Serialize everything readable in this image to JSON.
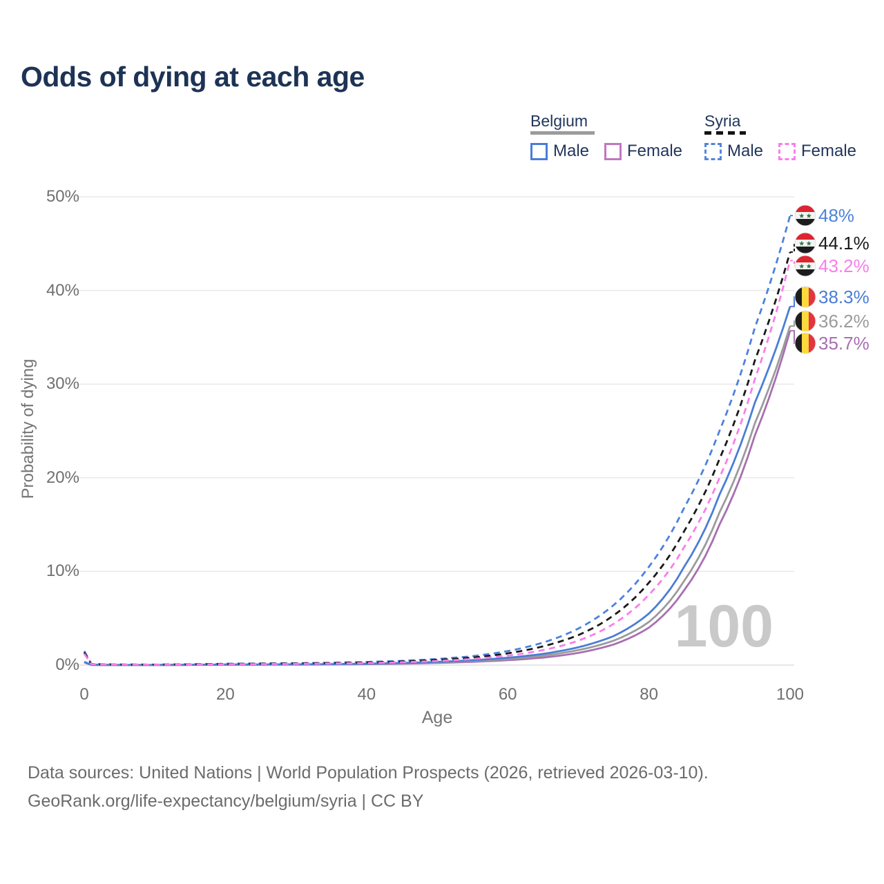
{
  "title": "Odds of dying at each age",
  "legend": {
    "groups": [
      {
        "name": "Belgium",
        "line_style": "solid",
        "line_color": "#9b9b9b",
        "items": [
          {
            "label": "Male",
            "color": "#4a7dd6",
            "dashed": false
          },
          {
            "label": "Female",
            "color": "#c077c0",
            "dashed": false
          }
        ]
      },
      {
        "name": "Syria",
        "line_style": "dashed",
        "line_color": "#141414",
        "items": [
          {
            "label": "Male",
            "color": "#5585d8",
            "dashed": true
          },
          {
            "label": "Female",
            "color": "#f97ee9",
            "dashed": true
          }
        ]
      }
    ]
  },
  "axes": {
    "x_label": "Age",
    "y_label": "Probability of dying",
    "x_ticks": [
      "0",
      "20",
      "40",
      "60",
      "80",
      "100"
    ],
    "y_ticks": [
      "0%",
      "10%",
      "20%",
      "30%",
      "40%",
      "50%"
    ]
  },
  "watermark": "100",
  "footer": {
    "line1": "Data sources: United Nations | World Population Prospects (2026, retrieved 2026-03-10).",
    "line2": "GeoRank.org/life-expectancy/belgium/syria | CC BY"
  },
  "chart_data": {
    "type": "line",
    "title": "Odds of dying at each age",
    "xlabel": "Age",
    "ylabel": "Probability of dying",
    "xlim": [
      0,
      100
    ],
    "ylim": [
      0,
      50
    ],
    "grid": "horizontal-only",
    "legend_position": "top-right",
    "x": [
      0,
      1,
      5,
      10,
      15,
      20,
      25,
      30,
      35,
      40,
      45,
      50,
      55,
      60,
      65,
      70,
      75,
      80,
      85,
      90,
      95,
      100
    ],
    "series": [
      {
        "name": "Syria Male",
        "country": "Syria",
        "sex": "Male",
        "color": "#4c82dd",
        "dash": true,
        "flag": "syria",
        "flag_icon": "syria-flag-icon",
        "end_label": "48%",
        "end_value": 48,
        "values": [
          1.5,
          0.12,
          0.06,
          0.05,
          0.09,
          0.14,
          0.17,
          0.2,
          0.25,
          0.33,
          0.45,
          0.65,
          0.95,
          1.5,
          2.4,
          3.9,
          6.4,
          10.5,
          16.8,
          25,
          36,
          48
        ]
      },
      {
        "name": "Syria Both sexes",
        "country": "Syria",
        "sex": "Both",
        "color": "#1a1a1a",
        "dash": true,
        "flag": "syria",
        "flag_icon": "syria-flag-icon",
        "end_label": "44.1%",
        "end_value": 44.1,
        "values": [
          1.35,
          0.11,
          0.055,
          0.045,
          0.08,
          0.12,
          0.15,
          0.17,
          0.21,
          0.28,
          0.38,
          0.55,
          0.8,
          1.25,
          2,
          3.2,
          5.3,
          8.8,
          14.3,
          22,
          32.5,
          44.1
        ]
      },
      {
        "name": "Syria Female",
        "country": "Syria",
        "sex": "Female",
        "color": "#f97ee9",
        "dash": true,
        "flag": "syria",
        "flag_icon": "syria-flag-icon",
        "end_label": "43.2%",
        "end_value": 43.2,
        "values": [
          1.2,
          0.1,
          0.05,
          0.04,
          0.06,
          0.09,
          0.11,
          0.13,
          0.16,
          0.22,
          0.3,
          0.44,
          0.65,
          1,
          1.6,
          2.6,
          4.4,
          7.5,
          12.6,
          20,
          30.5,
          43.2
        ]
      },
      {
        "name": "Belgium Male",
        "country": "Belgium",
        "sex": "Male",
        "color": "#4a7dd6",
        "dash": false,
        "flag": "belgium",
        "flag_icon": "belgium-flag-icon",
        "end_label": "38.3%",
        "end_value": 38.3,
        "values": [
          0.35,
          0.03,
          0.01,
          0.01,
          0.03,
          0.06,
          0.07,
          0.08,
          0.1,
          0.15,
          0.22,
          0.34,
          0.52,
          0.78,
          1.2,
          1.9,
          3.1,
          5.5,
          10.5,
          18.2,
          28,
          38.3
        ]
      },
      {
        "name": "Belgium Both sexes",
        "country": "Belgium",
        "sex": "Both",
        "color": "#9b9b9b",
        "dash": false,
        "flag": "belgium",
        "flag_icon": "belgium-flag-icon",
        "end_label": "36.2%",
        "end_value": 36.2,
        "values": [
          0.3,
          0.025,
          0.01,
          0.01,
          0.025,
          0.05,
          0.055,
          0.065,
          0.085,
          0.13,
          0.19,
          0.29,
          0.44,
          0.65,
          1,
          1.6,
          2.6,
          4.6,
          9,
          16.3,
          25.8,
          36.2
        ]
      },
      {
        "name": "Belgium Female",
        "country": "Belgium",
        "sex": "Female",
        "color": "#a76fb1",
        "dash": false,
        "flag": "belgium",
        "flag_icon": "belgium-flag-icon",
        "end_label": "35.7%",
        "end_value": 35.7,
        "values": [
          0.28,
          0.02,
          0.01,
          0.01,
          0.02,
          0.03,
          0.04,
          0.05,
          0.07,
          0.1,
          0.15,
          0.23,
          0.35,
          0.52,
          0.8,
          1.3,
          2.2,
          4,
          8,
          15,
          24.5,
          35.7
        ]
      }
    ],
    "colors": {
      "male_blue": "#4a7dd6",
      "female_pink_syria": "#f97ee9",
      "female_purple_belgium": "#a76fb1",
      "both_gray_belgium": "#9b9b9b",
      "both_black_syria": "#1a1a1a",
      "syria_flag": {
        "red": "#dd2430",
        "white": "#f4f4f4",
        "black": "#1c1c1e",
        "star_green": "#2f7a44"
      },
      "belgium_flag": {
        "black": "#1e1e1e",
        "yellow": "#fcd93c",
        "red": "#e33540"
      }
    }
  }
}
